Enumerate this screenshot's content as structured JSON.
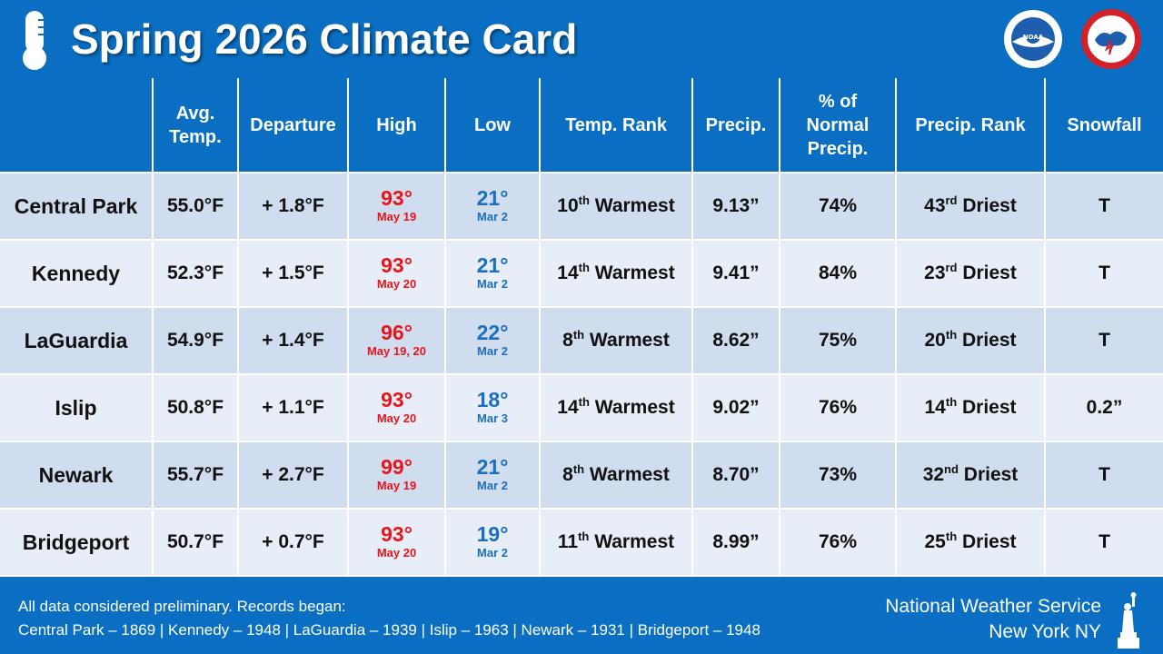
{
  "header": {
    "title": "Spring 2026 Climate Card",
    "icons": [
      "thermometer-icon",
      "noaa-logo",
      "nws-logo"
    ]
  },
  "table": {
    "columns": {
      "station": "",
      "avg_temp_l1": "Avg.",
      "avg_temp_l2": "Temp.",
      "departure": "Departure",
      "high": "High",
      "low": "Low",
      "temp_rank": "Temp. Rank",
      "precip": "Precip.",
      "pct_l1": "% of",
      "pct_l2": "Normal",
      "pct_l3": "Precip.",
      "precip_rank": "Precip. Rank",
      "snowfall": "Snowfall"
    },
    "rows": [
      {
        "station": "Central Park",
        "avg_temp": "55.0°F",
        "departure": "+ 1.8°F",
        "high": "93°",
        "high_date": "May 19",
        "low": "21°",
        "low_date": "Mar 2",
        "temp_rank_num": "10",
        "temp_rank_sfx": "th",
        "temp_rank_word": " Warmest",
        "precip": "9.13”",
        "pct_normal": "74%",
        "precip_rank_num": "43",
        "precip_rank_sfx": "rd",
        "precip_rank_word": " Driest",
        "snowfall": "T"
      },
      {
        "station": "Kennedy",
        "avg_temp": "52.3°F",
        "departure": "+ 1.5°F",
        "high": "93°",
        "high_date": "May 20",
        "low": "21°",
        "low_date": "Mar 2",
        "temp_rank_num": "14",
        "temp_rank_sfx": "th",
        "temp_rank_word": " Warmest",
        "precip": "9.41”",
        "pct_normal": "84%",
        "precip_rank_num": "23",
        "precip_rank_sfx": "rd",
        "precip_rank_word": " Driest",
        "snowfall": "T"
      },
      {
        "station": "LaGuardia",
        "avg_temp": "54.9°F",
        "departure": "+ 1.4°F",
        "high": "96°",
        "high_date": "May 19, 20",
        "low": "22°",
        "low_date": "Mar 2",
        "temp_rank_num": "8",
        "temp_rank_sfx": "th",
        "temp_rank_word": " Warmest",
        "precip": "8.62”",
        "pct_normal": "75%",
        "precip_rank_num": "20",
        "precip_rank_sfx": "th",
        "precip_rank_word": " Driest",
        "snowfall": "T"
      },
      {
        "station": "Islip",
        "avg_temp": "50.8°F",
        "departure": "+ 1.1°F",
        "high": "93°",
        "high_date": "May 20",
        "low": "18°",
        "low_date": "Mar 3",
        "temp_rank_num": "14",
        "temp_rank_sfx": "th",
        "temp_rank_word": " Warmest",
        "precip": "9.02”",
        "pct_normal": "76%",
        "precip_rank_num": "14",
        "precip_rank_sfx": "th",
        "precip_rank_word": " Driest",
        "snowfall": "0.2”"
      },
      {
        "station": "Newark",
        "avg_temp": "55.7°F",
        "departure": "+ 2.7°F",
        "high": "99°",
        "high_date": "May 19",
        "low": "21°",
        "low_date": "Mar 2",
        "temp_rank_num": "8",
        "temp_rank_sfx": "th",
        "temp_rank_word": " Warmest",
        "precip": "8.70”",
        "pct_normal": "73%",
        "precip_rank_num": "32",
        "precip_rank_sfx": "nd",
        "precip_rank_word": " Driest",
        "snowfall": "T"
      },
      {
        "station": "Bridgeport",
        "avg_temp": "50.7°F",
        "departure": "+ 0.7°F",
        "high": "93°",
        "high_date": "May 20",
        "low": "19°",
        "low_date": "Mar 2",
        "temp_rank_num": "11",
        "temp_rank_sfx": "th",
        "temp_rank_word": " Warmest",
        "precip": "8.99”",
        "pct_normal": "76%",
        "precip_rank_num": "25",
        "precip_rank_sfx": "th",
        "precip_rank_word": " Driest",
        "snowfall": "T"
      }
    ]
  },
  "footer": {
    "note_line1": "All data considered preliminary. Records began:",
    "note_line2": "Central Park – 1869  |  Kennedy – 1948  |  LaGuardia – 1939  |  Islip – 1963  |  Newark – 1931  |  Bridgeport – 1948",
    "agency": "National Weather Service",
    "office": "New York NY"
  },
  "colors": {
    "header_bg": "#0a6fc2",
    "row_odd": "#cfddee",
    "row_even": "#e8eef7",
    "high_red": "#e8151b",
    "low_blue": "#1a6fc0"
  }
}
